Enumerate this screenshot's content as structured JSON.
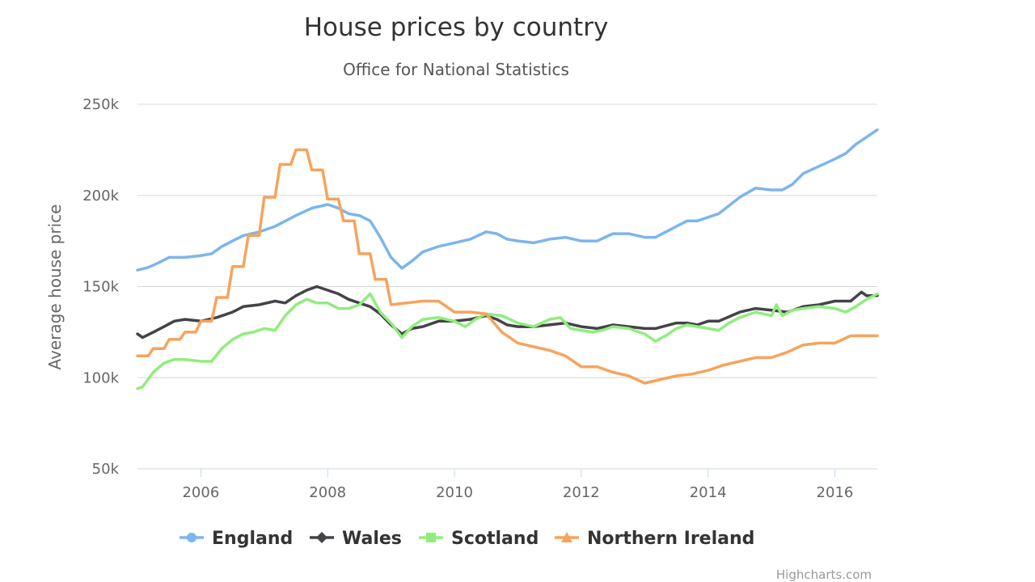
{
  "credits": "Highcharts.com",
  "chart_data": {
    "type": "line",
    "title": "House prices by country",
    "subtitle": "Office for National Statistics",
    "xlabel": "",
    "ylabel": "Average house price",
    "xlim": [
      2005.0,
      2016.67
    ],
    "ylim": [
      50000,
      250000
    ],
    "y_ticks": [
      {
        "value": 50000,
        "label": "50k"
      },
      {
        "value": 100000,
        "label": "100k"
      },
      {
        "value": 150000,
        "label": "150k"
      },
      {
        "value": 200000,
        "label": "200k"
      },
      {
        "value": 250000,
        "label": "250k"
      }
    ],
    "x_ticks": [
      {
        "value": 2006,
        "label": "2006"
      },
      {
        "value": 2008,
        "label": "2008"
      },
      {
        "value": 2010,
        "label": "2010"
      },
      {
        "value": 2012,
        "label": "2012"
      },
      {
        "value": 2014,
        "label": "2014"
      },
      {
        "value": 2016,
        "label": "2016"
      }
    ],
    "grid": true,
    "legend_position": "bottom",
    "series": [
      {
        "name": "England",
        "color": "#7cb5ec",
        "marker": "circle",
        "points": [
          [
            2005.0,
            159000
          ],
          [
            2005.17,
            160500
          ],
          [
            2005.33,
            163000
          ],
          [
            2005.5,
            166000
          ],
          [
            2005.75,
            166000
          ],
          [
            2006.0,
            167000
          ],
          [
            2006.17,
            168000
          ],
          [
            2006.33,
            172000
          ],
          [
            2006.5,
            175000
          ],
          [
            2006.67,
            178000
          ],
          [
            2006.92,
            180000
          ],
          [
            2007.17,
            183000
          ],
          [
            2007.5,
            189000
          ],
          [
            2007.75,
            193000
          ],
          [
            2008.0,
            195000
          ],
          [
            2008.17,
            193000
          ],
          [
            2008.33,
            190000
          ],
          [
            2008.5,
            189000
          ],
          [
            2008.67,
            186000
          ],
          [
            2008.83,
            177000
          ],
          [
            2009.0,
            166000
          ],
          [
            2009.17,
            160000
          ],
          [
            2009.33,
            164000
          ],
          [
            2009.5,
            169000
          ],
          [
            2009.75,
            172000
          ],
          [
            2010.0,
            174000
          ],
          [
            2010.25,
            176000
          ],
          [
            2010.5,
            180000
          ],
          [
            2010.67,
            179000
          ],
          [
            2010.83,
            176000
          ],
          [
            2011.0,
            175000
          ],
          [
            2011.25,
            174000
          ],
          [
            2011.5,
            176000
          ],
          [
            2011.75,
            177000
          ],
          [
            2012.0,
            175000
          ],
          [
            2012.25,
            175000
          ],
          [
            2012.5,
            179000
          ],
          [
            2012.75,
            179000
          ],
          [
            2013.0,
            177000
          ],
          [
            2013.17,
            177000
          ],
          [
            2013.5,
            183000
          ],
          [
            2013.67,
            186000
          ],
          [
            2013.83,
            186000
          ],
          [
            2014.0,
            188000
          ],
          [
            2014.17,
            190000
          ],
          [
            2014.5,
            199000
          ],
          [
            2014.75,
            204000
          ],
          [
            2015.0,
            203000
          ],
          [
            2015.17,
            203000
          ],
          [
            2015.33,
            206000
          ],
          [
            2015.5,
            212000
          ],
          [
            2015.75,
            216000
          ],
          [
            2016.0,
            220000
          ],
          [
            2016.17,
            223000
          ],
          [
            2016.33,
            228000
          ],
          [
            2016.5,
            232000
          ],
          [
            2016.67,
            236000
          ]
        ]
      },
      {
        "name": "Wales",
        "color": "#434348",
        "marker": "diamond",
        "points": [
          [
            2005.0,
            124000
          ],
          [
            2005.08,
            122000
          ],
          [
            2005.25,
            125000
          ],
          [
            2005.42,
            128000
          ],
          [
            2005.58,
            131000
          ],
          [
            2005.75,
            132000
          ],
          [
            2006.0,
            131000
          ],
          [
            2006.25,
            133000
          ],
          [
            2006.5,
            136000
          ],
          [
            2006.67,
            139000
          ],
          [
            2006.92,
            140000
          ],
          [
            2007.17,
            142000
          ],
          [
            2007.33,
            141000
          ],
          [
            2007.5,
            145000
          ],
          [
            2007.67,
            148000
          ],
          [
            2007.83,
            150000
          ],
          [
            2008.0,
            148000
          ],
          [
            2008.17,
            146000
          ],
          [
            2008.33,
            143000
          ],
          [
            2008.5,
            141000
          ],
          [
            2008.67,
            139000
          ],
          [
            2008.83,
            135000
          ],
          [
            2009.0,
            129000
          ],
          [
            2009.17,
            124000
          ],
          [
            2009.33,
            127000
          ],
          [
            2009.5,
            128000
          ],
          [
            2009.75,
            131000
          ],
          [
            2010.0,
            131000
          ],
          [
            2010.25,
            132000
          ],
          [
            2010.5,
            134000
          ],
          [
            2010.67,
            132000
          ],
          [
            2010.83,
            129000
          ],
          [
            2011.0,
            128000
          ],
          [
            2011.25,
            128000
          ],
          [
            2011.5,
            129000
          ],
          [
            2011.75,
            130000
          ],
          [
            2012.0,
            128000
          ],
          [
            2012.25,
            127000
          ],
          [
            2012.5,
            129000
          ],
          [
            2012.75,
            128000
          ],
          [
            2013.0,
            127000
          ],
          [
            2013.17,
            127000
          ],
          [
            2013.5,
            130000
          ],
          [
            2013.67,
            130000
          ],
          [
            2013.83,
            129000
          ],
          [
            2014.0,
            131000
          ],
          [
            2014.17,
            131000
          ],
          [
            2014.5,
            136000
          ],
          [
            2014.75,
            138000
          ],
          [
            2015.0,
            137000
          ],
          [
            2015.25,
            136000
          ],
          [
            2015.5,
            139000
          ],
          [
            2015.75,
            140000
          ],
          [
            2016.0,
            142000
          ],
          [
            2016.25,
            142000
          ],
          [
            2016.42,
            147000
          ],
          [
            2016.5,
            145000
          ],
          [
            2016.67,
            145000
          ]
        ]
      },
      {
        "name": "Scotland",
        "color": "#90ed7d",
        "marker": "square",
        "points": [
          [
            2005.0,
            94000
          ],
          [
            2005.08,
            95000
          ],
          [
            2005.25,
            103000
          ],
          [
            2005.42,
            108000
          ],
          [
            2005.58,
            110000
          ],
          [
            2005.75,
            110000
          ],
          [
            2006.0,
            109000
          ],
          [
            2006.17,
            109000
          ],
          [
            2006.33,
            116000
          ],
          [
            2006.5,
            121000
          ],
          [
            2006.67,
            124000
          ],
          [
            2006.83,
            125000
          ],
          [
            2007.0,
            127000
          ],
          [
            2007.17,
            126000
          ],
          [
            2007.33,
            134000
          ],
          [
            2007.5,
            140000
          ],
          [
            2007.67,
            143000
          ],
          [
            2007.83,
            141000
          ],
          [
            2008.0,
            141000
          ],
          [
            2008.17,
            138000
          ],
          [
            2008.33,
            138000
          ],
          [
            2008.5,
            140000
          ],
          [
            2008.67,
            146000
          ],
          [
            2008.83,
            136000
          ],
          [
            2009.0,
            130000
          ],
          [
            2009.17,
            122000
          ],
          [
            2009.33,
            128000
          ],
          [
            2009.5,
            132000
          ],
          [
            2009.75,
            133000
          ],
          [
            2010.0,
            131000
          ],
          [
            2010.17,
            128000
          ],
          [
            2010.33,
            132000
          ],
          [
            2010.5,
            135000
          ],
          [
            2010.75,
            134000
          ],
          [
            2011.0,
            130000
          ],
          [
            2011.25,
            128000
          ],
          [
            2011.5,
            132000
          ],
          [
            2011.67,
            133000
          ],
          [
            2011.83,
            127000
          ],
          [
            2012.0,
            126000
          ],
          [
            2012.17,
            125000
          ],
          [
            2012.33,
            126000
          ],
          [
            2012.5,
            128000
          ],
          [
            2012.75,
            127000
          ],
          [
            2013.0,
            124000
          ],
          [
            2013.17,
            120000
          ],
          [
            2013.33,
            123000
          ],
          [
            2013.5,
            127000
          ],
          [
            2013.67,
            129000
          ],
          [
            2013.83,
            128000
          ],
          [
            2014.0,
            127000
          ],
          [
            2014.17,
            126000
          ],
          [
            2014.33,
            130000
          ],
          [
            2014.5,
            133000
          ],
          [
            2014.75,
            136000
          ],
          [
            2015.0,
            134000
          ],
          [
            2015.08,
            140000
          ],
          [
            2015.17,
            134000
          ],
          [
            2015.33,
            137000
          ],
          [
            2015.5,
            138000
          ],
          [
            2015.75,
            139000
          ],
          [
            2016.0,
            138000
          ],
          [
            2016.17,
            136000
          ],
          [
            2016.33,
            139000
          ],
          [
            2016.5,
            143000
          ],
          [
            2016.67,
            146000
          ]
        ]
      },
      {
        "name": "Northern Ireland",
        "color": "#f7a35c",
        "marker": "triangle",
        "points": [
          [
            2005.0,
            112000
          ],
          [
            2005.17,
            112000
          ],
          [
            2005.25,
            116000
          ],
          [
            2005.42,
            116000
          ],
          [
            2005.5,
            121000
          ],
          [
            2005.67,
            121000
          ],
          [
            2005.75,
            125000
          ],
          [
            2005.92,
            125000
          ],
          [
            2006.0,
            131000
          ],
          [
            2006.17,
            131000
          ],
          [
            2006.25,
            144000
          ],
          [
            2006.42,
            144000
          ],
          [
            2006.5,
            161000
          ],
          [
            2006.67,
            161000
          ],
          [
            2006.75,
            178000
          ],
          [
            2006.92,
            178000
          ],
          [
            2007.0,
            199000
          ],
          [
            2007.17,
            199000
          ],
          [
            2007.25,
            217000
          ],
          [
            2007.42,
            217000
          ],
          [
            2007.5,
            225000
          ],
          [
            2007.67,
            225000
          ],
          [
            2007.75,
            214000
          ],
          [
            2007.92,
            214000
          ],
          [
            2008.0,
            198000
          ],
          [
            2008.17,
            198000
          ],
          [
            2008.25,
            186000
          ],
          [
            2008.42,
            186000
          ],
          [
            2008.5,
            168000
          ],
          [
            2008.67,
            168000
          ],
          [
            2008.75,
            154000
          ],
          [
            2008.92,
            154000
          ],
          [
            2009.0,
            140000
          ],
          [
            2009.25,
            141000
          ],
          [
            2009.5,
            142000
          ],
          [
            2009.75,
            142000
          ],
          [
            2010.0,
            136000
          ],
          [
            2010.25,
            136000
          ],
          [
            2010.5,
            135000
          ],
          [
            2010.75,
            125000
          ],
          [
            2011.0,
            119000
          ],
          [
            2011.25,
            117000
          ],
          [
            2011.5,
            115000
          ],
          [
            2011.75,
            112000
          ],
          [
            2012.0,
            106000
          ],
          [
            2012.25,
            106000
          ],
          [
            2012.5,
            103000
          ],
          [
            2012.75,
            101000
          ],
          [
            2013.0,
            97000
          ],
          [
            2013.25,
            99000
          ],
          [
            2013.5,
            101000
          ],
          [
            2013.75,
            102000
          ],
          [
            2014.0,
            104000
          ],
          [
            2014.25,
            107000
          ],
          [
            2014.5,
            109000
          ],
          [
            2014.75,
            111000
          ],
          [
            2015.0,
            111000
          ],
          [
            2015.25,
            114000
          ],
          [
            2015.5,
            118000
          ],
          [
            2015.75,
            119000
          ],
          [
            2016.0,
            119000
          ],
          [
            2016.25,
            123000
          ],
          [
            2016.5,
            123000
          ],
          [
            2016.67,
            123000
          ]
        ]
      }
    ]
  }
}
